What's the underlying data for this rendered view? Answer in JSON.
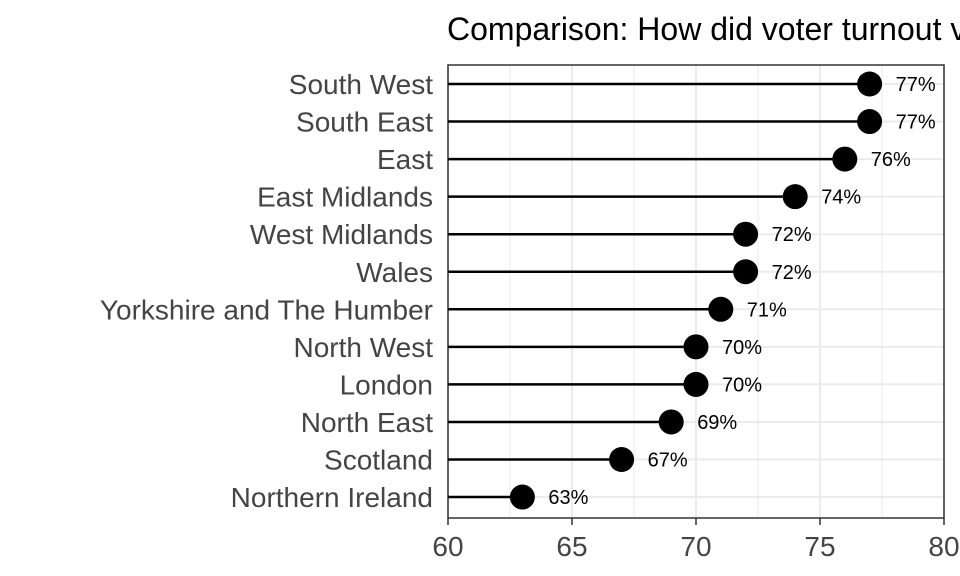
{
  "chart_data": {
    "type": "lollipop",
    "title": "Comparison: How did voter turnout vary by region?",
    "xlabel": "",
    "ylabel": "",
    "xlim": [
      60,
      80
    ],
    "x_ticks": [
      60,
      65,
      70,
      75,
      80
    ],
    "x_tick_labels": [
      "60",
      "65",
      "70",
      "75",
      "80"
    ],
    "grid": true,
    "legend": "none",
    "categories": [
      "South West",
      "South East",
      "East",
      "East Midlands",
      "West Midlands",
      "Wales",
      "Yorkshire and The Humber",
      "North West",
      "London",
      "North East",
      "Scotland",
      "Northern Ireland"
    ],
    "values": [
      77,
      77,
      76,
      74,
      72,
      72,
      71,
      70,
      70,
      69,
      67,
      63
    ],
    "value_labels": [
      "77%",
      "77%",
      "76%",
      "74%",
      "72%",
      "72%",
      "71%",
      "70%",
      "70%",
      "69%",
      "67%",
      "63%"
    ],
    "colors": {
      "point": "#000000",
      "stem": "#000000",
      "grid": "#ebebeb",
      "panel_border": "#333333",
      "axis_text": "#444444"
    }
  }
}
